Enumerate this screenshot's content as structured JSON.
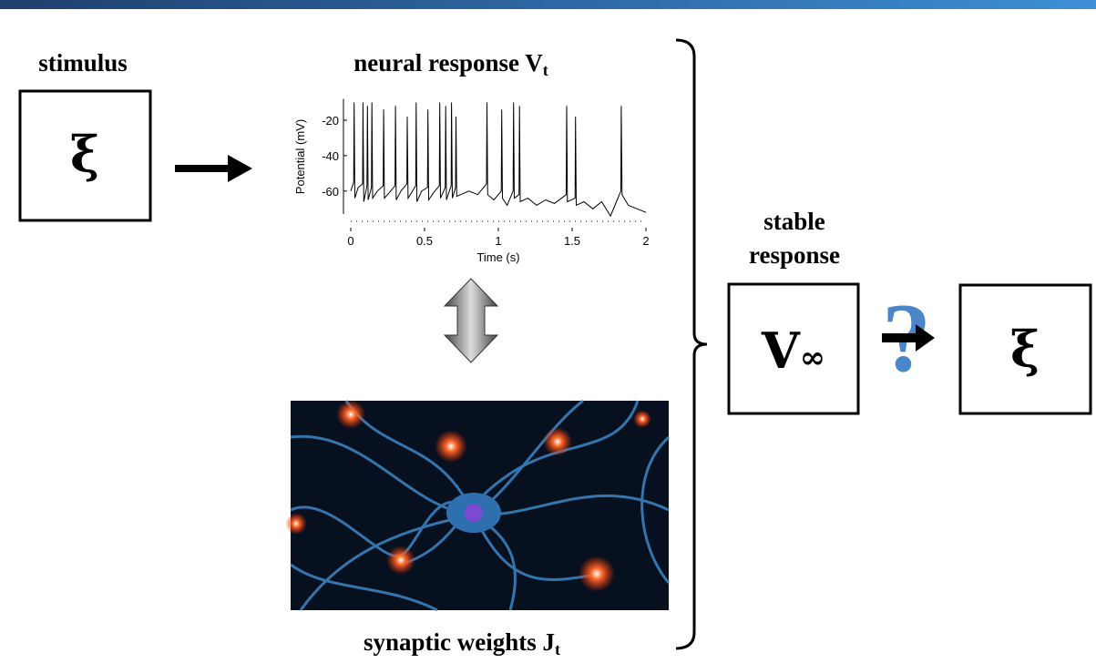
{
  "stimulus": {
    "label": "stimulus",
    "symbol": "ξ"
  },
  "neural_response": {
    "label": "neural response V",
    "subscript": "t",
    "chart": {
      "type": "line",
      "xlabel": "Time (s)",
      "ylabel": "Potential (mV)",
      "xlim": [
        0,
        2
      ],
      "ylim": [
        -75,
        -8
      ],
      "xticks": [
        0,
        0.5,
        1,
        1.5,
        2
      ],
      "yticks": [
        -20,
        -40,
        -60
      ],
      "color": "#000000",
      "x": [
        0,
        0.02,
        0.023,
        0.028,
        0.05,
        0.08,
        0.083,
        0.088,
        0.11,
        0.113,
        0.118,
        0.14,
        0.143,
        0.148,
        0.18,
        0.22,
        0.223,
        0.228,
        0.26,
        0.3,
        0.303,
        0.308,
        0.34,
        0.38,
        0.383,
        0.388,
        0.44,
        0.443,
        0.448,
        0.48,
        0.52,
        0.523,
        0.528,
        0.56,
        0.6,
        0.603,
        0.608,
        0.64,
        0.643,
        0.648,
        0.68,
        0.683,
        0.688,
        0.71,
        0.713,
        0.718,
        0.8,
        0.86,
        0.92,
        0.923,
        0.928,
        0.97,
        1.02,
        1.023,
        1.028,
        1.06,
        1.1,
        1.103,
        1.108,
        1.14,
        1.143,
        1.148,
        1.2,
        1.26,
        1.32,
        1.38,
        1.46,
        1.463,
        1.468,
        1.52,
        1.523,
        1.528,
        1.58,
        1.64,
        1.7,
        1.76,
        1.8,
        1.83,
        1.833,
        1.838,
        1.88,
        1.94,
        2
      ],
      "values": [
        -60,
        -55,
        -10,
        -64,
        -58,
        -56,
        -10,
        -66,
        -57,
        -12,
        -65,
        -58,
        -10,
        -64,
        -60,
        -57,
        -14,
        -64,
        -61,
        -57,
        -12,
        -65,
        -60,
        -56,
        -18,
        -64,
        -57,
        -10,
        -66,
        -60,
        -58,
        -14,
        -65,
        -61,
        -57,
        -10,
        -64,
        -58,
        -12,
        -65,
        -57,
        -10,
        -64,
        -58,
        -18,
        -63,
        -60,
        -62,
        -56,
        -10,
        -62,
        -65,
        -60,
        -14,
        -64,
        -68,
        -60,
        -10,
        -64,
        -62,
        -12,
        -66,
        -64,
        -68,
        -65,
        -67,
        -62,
        -12,
        -66,
        -64,
        -18,
        -68,
        -66,
        -70,
        -66,
        -74,
        -66,
        -60,
        -12,
        -62,
        -68,
        -70,
        -72
      ]
    }
  },
  "synaptic_weights": {
    "label": "synaptic weights J",
    "subscript": "t"
  },
  "stable_response": {
    "label_line1": "stable",
    "label_line2": "response",
    "symbol": "V",
    "subscript": "∞"
  },
  "question": "?",
  "output": {
    "symbol": "ξ"
  }
}
